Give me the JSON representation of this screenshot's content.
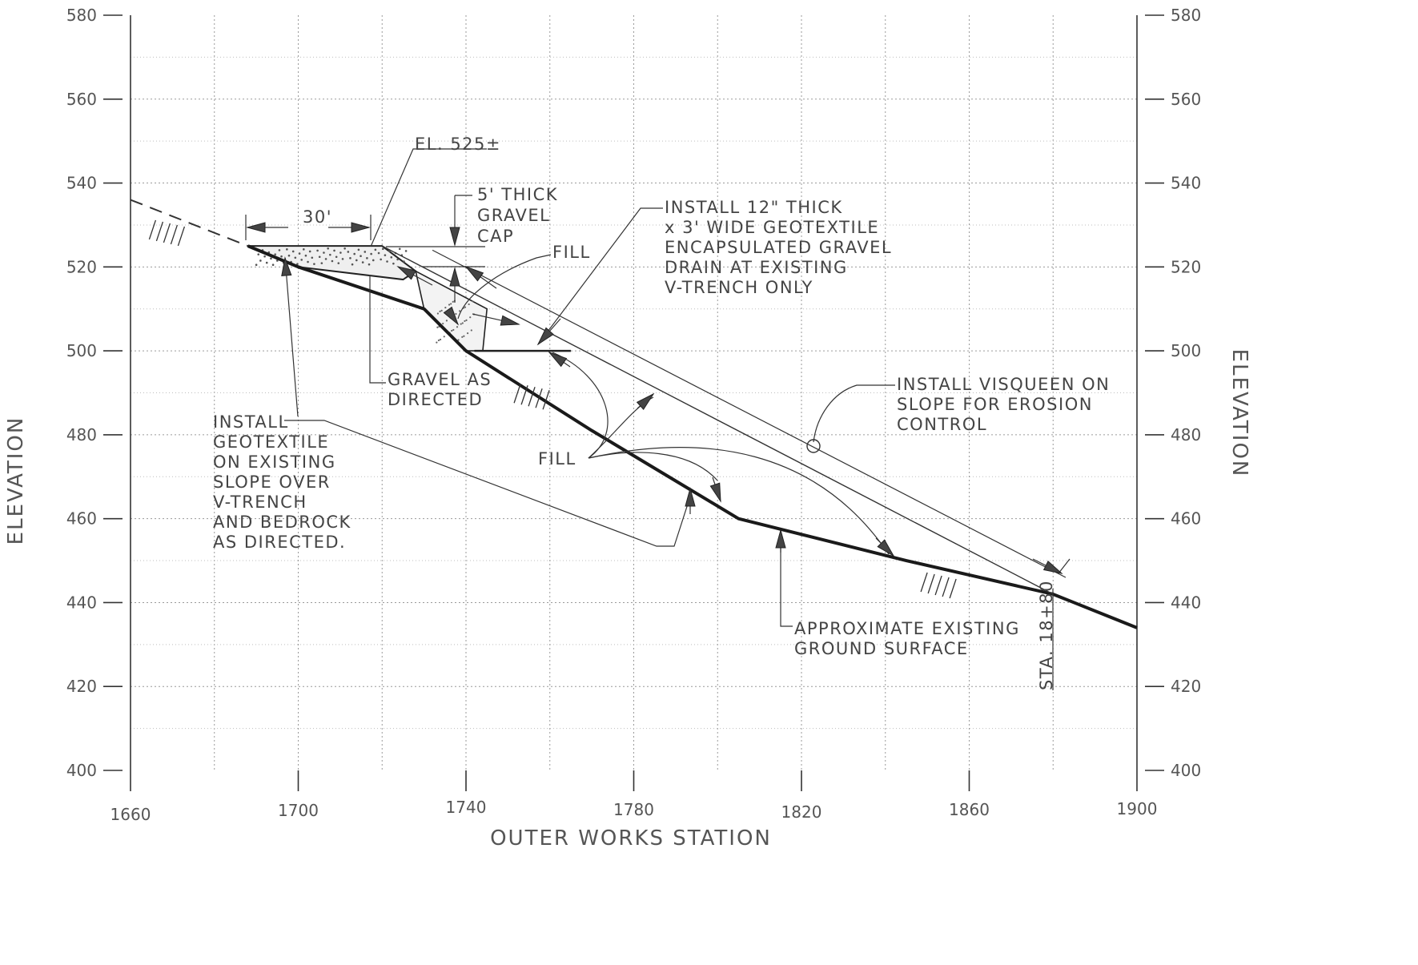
{
  "axes": {
    "x_title": "OUTER WORKS STATION",
    "y_title_left": "ELEVATION",
    "y_title_right": "ELEVATION",
    "x_ticks": [
      "1660",
      "1700",
      "1740",
      "1780",
      "1820",
      "1860",
      "1900"
    ],
    "y_ticks": [
      "400",
      "420",
      "440",
      "460",
      "480",
      "500",
      "520",
      "540",
      "560",
      "580"
    ],
    "x_range": [
      1660,
      1900
    ],
    "y_range": [
      400,
      580
    ]
  },
  "annotations": {
    "elevation_mark": "EL. 525±",
    "width_dim": "30'",
    "gravel_cap": [
      "5' THICK",
      "GRAVEL",
      "CAP"
    ],
    "fill_upper": "FILL",
    "drain_note": [
      "INSTALL 12\" THICK",
      "x 3' WIDE GEOTEXTILE",
      "ENCAPSULATED GRAVEL",
      "DRAIN AT EXISTING",
      "V-TRENCH ONLY"
    ],
    "gravel_directed": [
      "GRAVEL AS",
      "DIRECTED"
    ],
    "geotextile_note": [
      "INSTALL",
      "GEOTEXTILE",
      "ON EXISTING",
      "SLOPE OVER",
      "V-TRENCH",
      "AND BEDROCK",
      "AS DIRECTED."
    ],
    "visqueen_note": [
      "INSTALL VISQUEEN ON",
      "SLOPE FOR EROSION",
      "CONTROL"
    ],
    "fill_lower": "FILL",
    "ground_note": [
      "APPROXIMATE EXISTING",
      "GROUND SURFACE"
    ],
    "station_label": "STA. 18+80"
  },
  "profile": {
    "existing_ground": [
      [
        1688,
        525
      ],
      [
        1700,
        520
      ],
      [
        1730,
        510
      ],
      [
        1740,
        500
      ],
      [
        1770,
        481
      ],
      [
        1790,
        469
      ],
      [
        1805,
        460
      ],
      [
        1845,
        450
      ],
      [
        1880,
        442
      ],
      [
        1885,
        440
      ],
      [
        1900,
        434
      ]
    ],
    "existing_ground_dashed": [
      [
        1660,
        536
      ],
      [
        1688,
        525
      ]
    ],
    "finished_slope": [
      [
        1720,
        525
      ],
      [
        1880,
        442
      ]
    ],
    "cap_top": [
      [
        1688,
        525
      ],
      [
        1720,
        525
      ]
    ]
  },
  "colors": {
    "line": "#1a1a1a",
    "text": "#555555",
    "grid": "#9a9a9a"
  }
}
